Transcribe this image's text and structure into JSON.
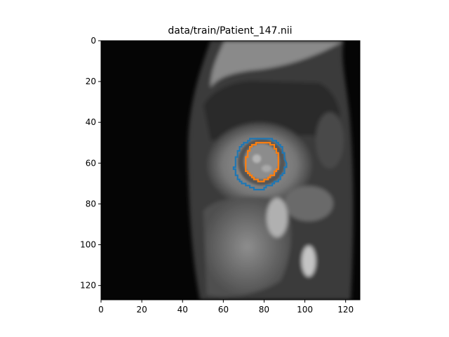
{
  "figure": {
    "title": "data/train/Patient_147.nii",
    "image_description_name": "cardiac-mri-short-axis-slice",
    "x_ticks": [
      "0",
      "20",
      "40",
      "60",
      "80",
      "100",
      "120"
    ],
    "y_ticks": [
      "0",
      "20",
      "40",
      "60",
      "80",
      "100",
      "120"
    ],
    "x_range": [
      0,
      127
    ],
    "y_range": [
      0,
      127
    ],
    "colors": {
      "outer_contour": "#1f77b4",
      "inner_contour": "#ff7f0e",
      "background": "#ffffff"
    }
  },
  "contours": {
    "outer": {
      "name": "epicardium",
      "center_data": [
        78,
        60
      ],
      "radii_data": [
        12.5,
        12.5
      ]
    },
    "inner": {
      "name": "endocardium",
      "center_data": [
        79,
        59
      ],
      "radii_data": [
        8,
        9.5
      ]
    }
  }
}
